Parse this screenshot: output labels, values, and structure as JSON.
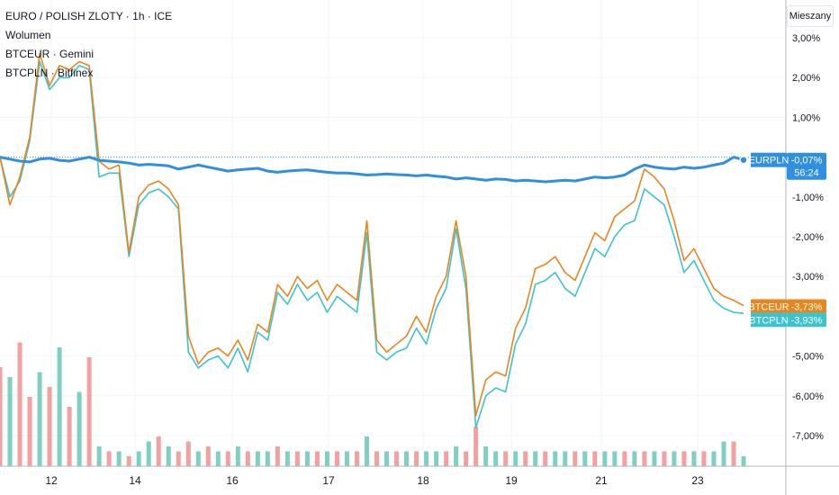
{
  "legend": {
    "title": "EURO / POLISH ZLOTY · 1h · ICE",
    "volume": "Wolumen",
    "series1": "BTCEUR · Gemini",
    "series2": "BTCPLN · Bitfinex"
  },
  "scale_button": "Mieszany",
  "colors": {
    "eurpln": "#2f8fe0",
    "btceur": "#e8861e",
    "btcpln": "#3cc3cf",
    "vol_up": "#7fcfc2",
    "vol_down": "#f3a0a0",
    "grid": "#f0f3fa",
    "axis": "#b2b5be"
  },
  "chart_data": {
    "type": "line",
    "x_ticks": [
      "12",
      "14",
      "16",
      "17",
      "18",
      "19",
      "21",
      "23"
    ],
    "y_ticks": [
      "3,00%",
      "2,00%",
      "1,00%",
      "-1,00%",
      "-2,00%",
      "-3,00%",
      "-5,00%",
      "-6,00%",
      "-7,00%"
    ],
    "ylim": [
      -7.8,
      3.4
    ],
    "grid": true,
    "series": [
      {
        "name": "EURPLN",
        "label": "EURPLN",
        "value_label": "-0,07%",
        "sub_label": "56:24",
        "values": [
          0.0,
          -0.05,
          -0.1,
          -0.12,
          -0.05,
          -0.03,
          -0.08,
          -0.1,
          -0.05,
          0.0,
          -0.08,
          -0.1,
          -0.12,
          -0.15,
          -0.2,
          -0.18,
          -0.2,
          -0.22,
          -0.3,
          -0.25,
          -0.2,
          -0.25,
          -0.3,
          -0.35,
          -0.32,
          -0.3,
          -0.28,
          -0.35,
          -0.38,
          -0.35,
          -0.33,
          -0.32,
          -0.35,
          -0.38,
          -0.4,
          -0.4,
          -0.42,
          -0.45,
          -0.44,
          -0.42,
          -0.44,
          -0.45,
          -0.47,
          -0.45,
          -0.48,
          -0.5,
          -0.55,
          -0.52,
          -0.55,
          -0.58,
          -0.55,
          -0.56,
          -0.6,
          -0.58,
          -0.6,
          -0.62,
          -0.6,
          -0.58,
          -0.6,
          -0.55,
          -0.5,
          -0.52,
          -0.5,
          -0.45,
          -0.3,
          -0.2,
          -0.25,
          -0.28,
          -0.3,
          -0.25,
          -0.28,
          -0.25,
          -0.2,
          -0.15,
          0.0,
          -0.07
        ]
      },
      {
        "name": "BTCEUR",
        "label": "BTCEUR",
        "value_label": "-3,73%",
        "values": [
          0.0,
          -1.2,
          -0.5,
          0.5,
          2.6,
          1.8,
          2.3,
          2.2,
          2.4,
          2.3,
          -0.1,
          -0.3,
          -0.2,
          -2.4,
          -1.0,
          -0.7,
          -0.6,
          -0.8,
          -1.2,
          -4.5,
          -5.2,
          -4.9,
          -4.8,
          -5.0,
          -4.6,
          -5.1,
          -4.2,
          -4.4,
          -3.2,
          -3.5,
          -3.0,
          -3.3,
          -3.1,
          -3.6,
          -3.2,
          -3.4,
          -3.6,
          -1.6,
          -4.6,
          -4.9,
          -4.7,
          -4.5,
          -4.0,
          -4.4,
          -3.5,
          -3.0,
          -1.6,
          -3.0,
          -6.5,
          -5.6,
          -5.4,
          -5.5,
          -4.3,
          -3.8,
          -2.8,
          -2.7,
          -2.5,
          -2.9,
          -3.1,
          -2.5,
          -1.9,
          -2.1,
          -1.5,
          -1.3,
          -1.1,
          -0.3,
          -0.5,
          -0.8,
          -1.6,
          -2.6,
          -2.3,
          -2.8,
          -3.3,
          -3.5,
          -3.6,
          -3.73
        ]
      },
      {
        "name": "BTCPLN",
        "label": "BTCPLN",
        "value_label": "-3,93%",
        "values": [
          0.0,
          -1.0,
          -0.6,
          0.4,
          2.4,
          1.7,
          2.0,
          2.0,
          2.3,
          2.2,
          -0.5,
          -0.4,
          -0.4,
          -2.5,
          -1.2,
          -0.9,
          -0.8,
          -1.0,
          -1.3,
          -4.9,
          -5.3,
          -5.1,
          -5.0,
          -5.3,
          -4.8,
          -5.4,
          -4.4,
          -4.6,
          -3.4,
          -3.7,
          -3.2,
          -3.6,
          -3.4,
          -3.9,
          -3.5,
          -3.7,
          -3.9,
          -1.9,
          -4.9,
          -5.1,
          -4.9,
          -4.8,
          -4.3,
          -4.7,
          -3.8,
          -3.3,
          -1.8,
          -3.3,
          -6.8,
          -6.0,
          -5.8,
          -5.9,
          -4.7,
          -4.2,
          -3.2,
          -3.1,
          -2.9,
          -3.3,
          -3.5,
          -2.9,
          -2.3,
          -2.5,
          -2.0,
          -1.7,
          -1.6,
          -0.8,
          -1.0,
          -1.2,
          -2.0,
          -2.9,
          -2.6,
          -3.1,
          -3.6,
          -3.8,
          -3.9,
          -3.93
        ]
      }
    ],
    "volume": {
      "name": "Wolumen",
      "values": [
        2.0,
        1.8,
        2.5,
        1.4,
        1.9,
        1.6,
        2.4,
        1.2,
        1.5,
        2.2,
        0.4,
        0.3,
        0.3,
        0.2,
        0.3,
        0.5,
        0.6,
        0.4,
        0.3,
        0.5,
        0.3,
        0.4,
        0.3,
        0.3,
        0.4,
        0.3,
        0.3,
        0.3,
        0.4,
        0.3,
        0.3,
        0.3,
        0.3,
        0.3,
        0.3,
        0.3,
        0.3,
        0.6,
        0.3,
        0.3,
        0.3,
        0.3,
        0.3,
        0.3,
        0.3,
        0.3,
        0.4,
        0.3,
        0.8,
        0.4,
        0.3,
        0.3,
        0.3,
        0.3,
        0.3,
        0.3,
        0.3,
        0.3,
        0.3,
        0.3,
        0.3,
        0.3,
        0.3,
        0.3,
        0.3,
        0.3,
        0.3,
        0.3,
        0.3,
        0.3,
        0.3,
        0.3,
        0.3,
        0.5,
        0.5,
        0.2
      ],
      "up": [
        false,
        true,
        false,
        false,
        true,
        false,
        true,
        false,
        true,
        false,
        true,
        false,
        true,
        false,
        true,
        true,
        false,
        true,
        false,
        false,
        true,
        false,
        true,
        false,
        true,
        false,
        true,
        true,
        false,
        true,
        false,
        true,
        false,
        true,
        false,
        true,
        false,
        true,
        false,
        true,
        false,
        true,
        false,
        true,
        true,
        false,
        true,
        false,
        false,
        true,
        true,
        false,
        true,
        false,
        true,
        false,
        true,
        true,
        false,
        true,
        false,
        true,
        true,
        false,
        true,
        false,
        true,
        false,
        true,
        false,
        true,
        false,
        true,
        true,
        false,
        true
      ]
    }
  }
}
